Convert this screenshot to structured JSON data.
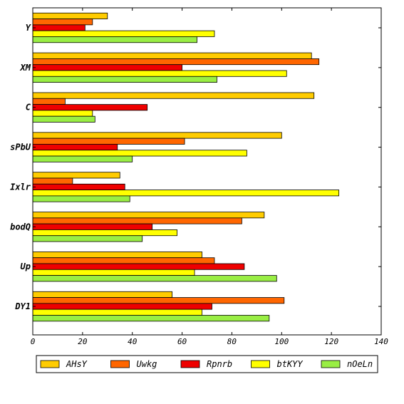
{
  "chart_data": {
    "type": "bar",
    "orientation": "horizontal",
    "categories": [
      "Y",
      "XM",
      "C",
      "sPbU",
      "Ixlr",
      "bodQ",
      "Up",
      "DY1"
    ],
    "series": [
      {
        "name": "AHsY",
        "color": "#ffcc00",
        "values": [
          30,
          112,
          113,
          100,
          35,
          93,
          68,
          56
        ]
      },
      {
        "name": "Uwkg",
        "color": "#ff6600",
        "values": [
          24,
          115,
          13,
          61,
          16,
          84,
          73,
          101
        ]
      },
      {
        "name": "Rpnrb",
        "color": "#ee0000",
        "values": [
          21,
          60,
          46,
          34,
          37,
          48,
          85,
          72
        ]
      },
      {
        "name": "btKYY",
        "color": "#ffff00",
        "values": [
          73,
          102,
          24,
          86,
          123,
          58,
          65,
          68
        ]
      },
      {
        "name": "nOeLn",
        "color": "#99ee44",
        "values": [
          66,
          74,
          25,
          40,
          39,
          44,
          98,
          95
        ]
      }
    ],
    "xticks": [
      0,
      20,
      40,
      60,
      80,
      100,
      120,
      140
    ],
    "xlim": [
      0,
      140
    ],
    "title": "",
    "xlabel": "",
    "ylabel": "",
    "grid": false,
    "legend_position": "bottom"
  }
}
